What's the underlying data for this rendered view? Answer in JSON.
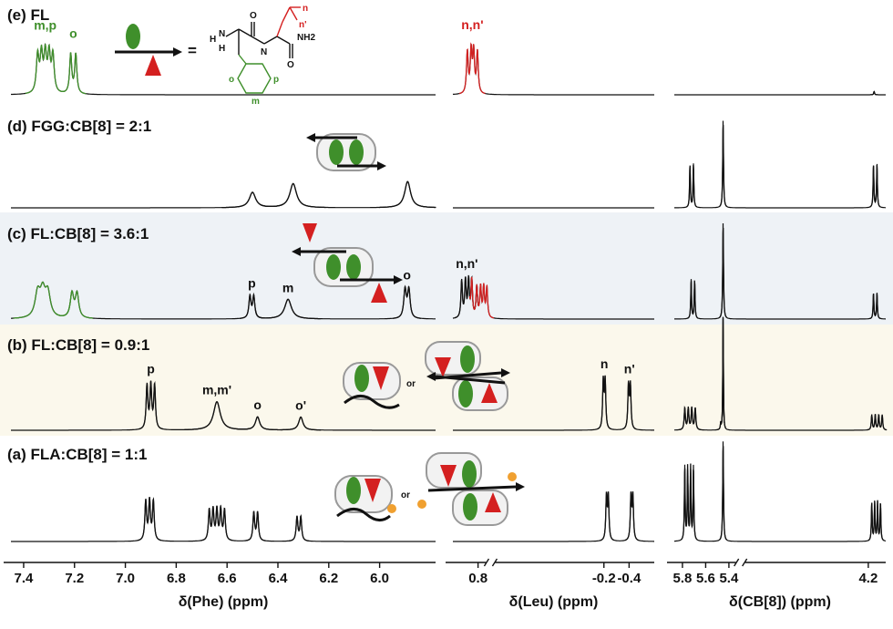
{
  "chart_data": {
    "type": "line",
    "title": "",
    "sections": [
      {
        "name": "Phe",
        "xlabel": "δ(Phe) (ppm)",
        "range": [
          7.45,
          5.78
        ],
        "ticks": [
          "7.4",
          "7.2",
          "7.0",
          "6.8",
          "6.6",
          "6.4",
          "6.2",
          "6.0"
        ],
        "tick_values": [
          7.4,
          7.2,
          7.0,
          6.8,
          6.6,
          6.4,
          6.2,
          6.0
        ]
      },
      {
        "name": "Leu",
        "xlabel": "δ(Leu) (ppm)",
        "range": [
          1.0,
          -0.6
        ],
        "ticks": [
          "0.8",
          "-0.2",
          "-0.4"
        ],
        "tick_values": [
          0.8,
          -0.2,
          -0.4
        ],
        "axis_break_after": 0.7
      },
      {
        "name": "CB[8]",
        "xlabel": "δ(CB[8]) (ppm)",
        "range": [
          5.87,
          4.05
        ],
        "ticks": [
          "5.8",
          "5.6",
          "5.4",
          "4.2"
        ],
        "tick_values": [
          5.8,
          5.6,
          5.4,
          4.2
        ],
        "axis_break_after": 5.3
      }
    ],
    "traces": [
      {
        "id": "e",
        "label": "(e) FL",
        "peaks": [
          {
            "section": "Phe",
            "ppm": [
              7.345,
              7.33,
              7.315,
              7.3,
              7.285
            ],
            "height": 0.85,
            "width": 0.006,
            "color": "#3f8f2b",
            "annotation": "m,p"
          },
          {
            "section": "Phe",
            "ppm": [
              7.215,
              7.195
            ],
            "height": 0.9,
            "width": 0.005,
            "color": "#3f8f2b",
            "annotation": "o"
          },
          {
            "section": "Leu",
            "ppm": [
              0.885,
              0.855,
              0.835,
              0.805
            ],
            "height": 0.95,
            "width": 0.008,
            "color": "#d42020",
            "annotation": "n,n'"
          },
          {
            "section": "CB[8]",
            "ppm": [
              4.15
            ],
            "height": 0.08,
            "width": 0.004,
            "color": "#111111"
          }
        ]
      },
      {
        "id": "d",
        "label": "(d) FGG:CB[8] = 2:1",
        "peaks": [
          {
            "section": "Phe",
            "ppm": [
              6.5
            ],
            "height": 0.35,
            "width": 0.015,
            "color": "#111111"
          },
          {
            "section": "Phe",
            "ppm": [
              6.34
            ],
            "height": 0.55,
            "width": 0.016,
            "color": "#111111"
          },
          {
            "section": "Phe",
            "ppm": [
              5.89
            ],
            "height": 0.6,
            "width": 0.014,
            "color": "#111111"
          },
          {
            "section": "CB[8]",
            "ppm": [
              5.735,
              5.705
            ],
            "height": 1.0,
            "width": 0.004,
            "color": "#111111"
          },
          {
            "section": "CB[8]",
            "ppm": [
              5.45
            ],
            "height": 2.0,
            "width": 0.004,
            "color": "#111111"
          },
          {
            "section": "CB[8]",
            "ppm": [
              4.155,
              4.125
            ],
            "height": 1.0,
            "width": 0.004,
            "color": "#111111"
          }
        ]
      },
      {
        "id": "c",
        "label": "(c) FL:CB[8] = 3.6:1",
        "peaks": [
          {
            "section": "Phe",
            "ppm": [
              7.345,
              7.325,
              7.305
            ],
            "height": 0.55,
            "width": 0.012,
            "color": "#3f8f2b"
          },
          {
            "section": "Phe",
            "ppm": [
              7.21,
              7.19
            ],
            "height": 0.55,
            "width": 0.008,
            "color": "#3f8f2b"
          },
          {
            "section": "Phe",
            "ppm": [
              6.51,
              6.495
            ],
            "height": 0.5,
            "width": 0.005,
            "color": "#111111",
            "annotation": "p"
          },
          {
            "section": "Phe",
            "ppm": [
              6.36
            ],
            "height": 0.45,
            "width": 0.016,
            "color": "#111111",
            "annotation": "m"
          },
          {
            "section": "Phe",
            "ppm": [
              5.9,
              5.885
            ],
            "height": 0.65,
            "width": 0.006,
            "color": "#111111",
            "annotation": "o"
          },
          {
            "section": "Leu",
            "ppm": [
              0.93,
              0.9,
              0.875,
              0.85
            ],
            "height": 0.85,
            "width": 0.007,
            "color": "#111111",
            "annotation": "n,n'"
          },
          {
            "section": "Leu",
            "ppm": [
              0.81,
              0.78,
              0.755,
              0.73
            ],
            "height": 0.7,
            "width": 0.007,
            "color": "#d42020"
          },
          {
            "section": "CB[8]",
            "ppm": [
              5.725,
              5.695
            ],
            "height": 0.9,
            "width": 0.004,
            "color": "#111111"
          },
          {
            "section": "CB[8]",
            "ppm": [
              5.45
            ],
            "height": 2.2,
            "width": 0.004,
            "color": "#111111"
          },
          {
            "section": "CB[8]",
            "ppm": [
              4.155,
              4.125
            ],
            "height": 0.6,
            "width": 0.004,
            "color": "#111111"
          }
        ]
      },
      {
        "id": "b",
        "label": "(b) FL:CB[8] = 0.9:1",
        "peaks": [
          {
            "section": "Phe",
            "ppm": [
              6.915,
              6.9,
              6.885
            ],
            "height": 1.0,
            "width": 0.004,
            "color": "#111111",
            "annotation": "p"
          },
          {
            "section": "Phe",
            "ppm": [
              6.64
            ],
            "height": 0.65,
            "width": 0.016,
            "color": "#111111",
            "annotation": "m,m'"
          },
          {
            "section": "Phe",
            "ppm": [
              6.48
            ],
            "height": 0.3,
            "width": 0.01,
            "color": "#111111",
            "annotation": "o"
          },
          {
            "section": "Phe",
            "ppm": [
              6.31
            ],
            "height": 0.3,
            "width": 0.01,
            "color": "#111111",
            "annotation": "o'"
          },
          {
            "section": "Leu",
            "ppm": [
              -0.195,
              -0.21
            ],
            "height": 1.1,
            "width": 0.006,
            "color": "#111111",
            "annotation": "n"
          },
          {
            "section": "Leu",
            "ppm": [
              -0.395,
              -0.41
            ],
            "height": 1.0,
            "width": 0.006,
            "color": "#111111",
            "annotation": "n'"
          },
          {
            "section": "CB[8]",
            "ppm": [
              5.78,
              5.75,
              5.72,
              5.69
            ],
            "height": 0.5,
            "width": 0.006,
            "color": "#111111"
          },
          {
            "section": "CB[8]",
            "ppm": [
              5.47
            ],
            "height": 0.15,
            "width": 0.004,
            "color": "#111111"
          },
          {
            "section": "CB[8]",
            "ppm": [
              5.45
            ],
            "height": 2.6,
            "width": 0.003,
            "color": "#111111"
          },
          {
            "section": "CB[8]",
            "ppm": [
              4.17,
              4.14,
              4.11,
              4.08
            ],
            "height": 0.35,
            "width": 0.005,
            "color": "#111111"
          }
        ]
      },
      {
        "id": "a",
        "label": "(a) FLA:CB[8] = 1:1",
        "peaks": [
          {
            "section": "Phe",
            "ppm": [
              6.92,
              6.905,
              6.89
            ],
            "height": 0.9,
            "width": 0.004,
            "color": "#111111"
          },
          {
            "section": "Phe",
            "ppm": [
              6.67,
              6.655,
              6.64,
              6.625,
              6.61
            ],
            "height": 0.7,
            "width": 0.004,
            "color": "#111111"
          },
          {
            "section": "Phe",
            "ppm": [
              6.495,
              6.48
            ],
            "height": 0.65,
            "width": 0.004,
            "color": "#111111"
          },
          {
            "section": "Phe",
            "ppm": [
              6.325,
              6.31
            ],
            "height": 0.55,
            "width": 0.004,
            "color": "#111111"
          },
          {
            "section": "Leu",
            "ppm": [
              -0.22,
              -0.235
            ],
            "height": 1.0,
            "width": 0.006,
            "color": "#111111"
          },
          {
            "section": "Leu",
            "ppm": [
              -0.415,
              -0.43
            ],
            "height": 1.0,
            "width": 0.006,
            "color": "#111111"
          },
          {
            "section": "CB[8]",
            "ppm": [
              5.78,
              5.755,
              5.73,
              5.705
            ],
            "height": 1.7,
            "width": 0.004,
            "color": "#111111"
          },
          {
            "section": "CB[8]",
            "ppm": [
              5.45
            ],
            "height": 2.3,
            "width": 0.004,
            "color": "#111111"
          },
          {
            "section": "CB[8]",
            "ppm": [
              4.17,
              4.145,
              4.12,
              4.095
            ],
            "height": 0.9,
            "width": 0.004,
            "color": "#111111"
          }
        ]
      }
    ],
    "molecule": {
      "atom_labels": [
        "H",
        "N",
        "H",
        "N",
        "O",
        "NH2",
        "O",
        "n",
        "n'",
        "o",
        "m",
        "p"
      ],
      "equals_sign": "=",
      "connector": "or"
    },
    "colors": {
      "green": "#3f8f2b",
      "red": "#d42020",
      "black": "#111111",
      "band_c": "#eef2f6",
      "band_b": "#fbf8ec"
    }
  }
}
